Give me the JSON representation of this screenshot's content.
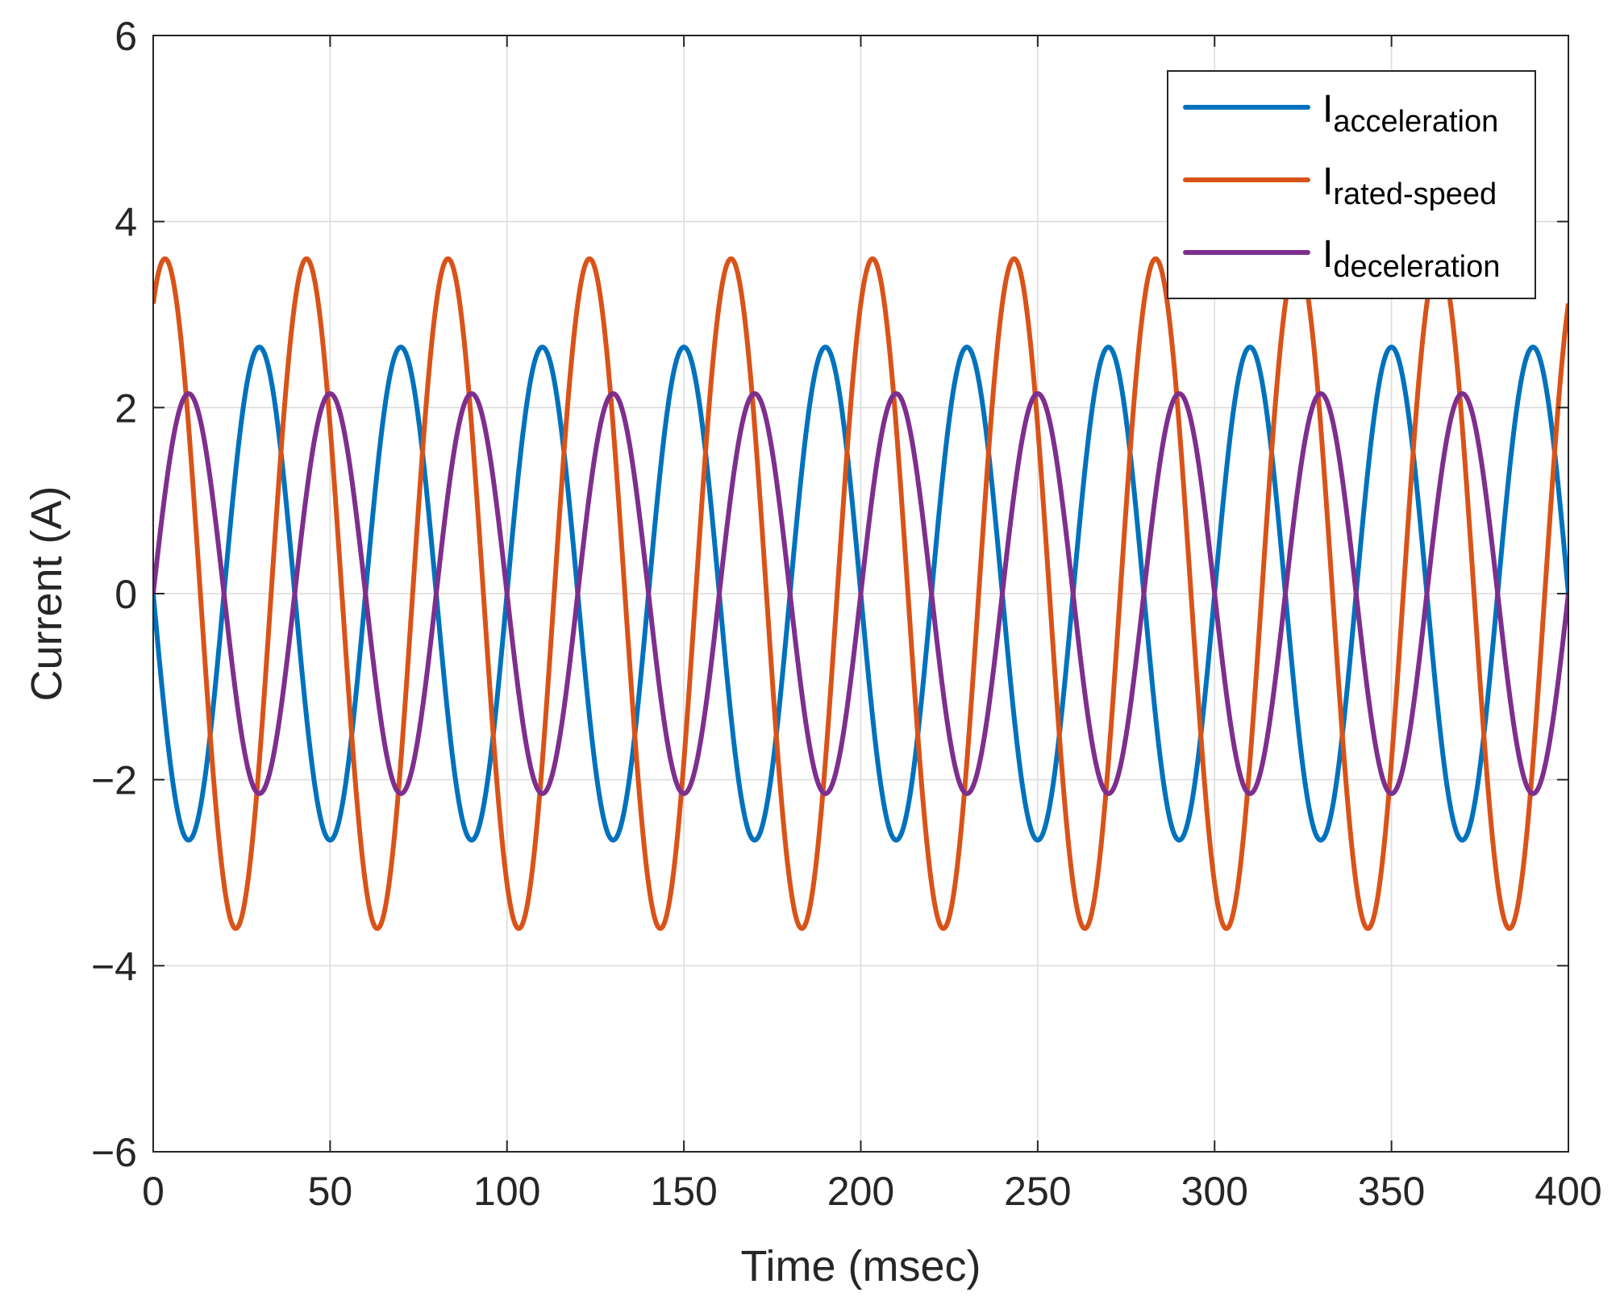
{
  "chart_data": {
    "type": "line",
    "title": "",
    "xlabel": "Time (msec)",
    "ylabel": "Current (A)",
    "xlim": [
      0,
      400
    ],
    "ylim": [
      -6,
      6
    ],
    "xticks": [
      0,
      50,
      100,
      150,
      200,
      250,
      300,
      350,
      400
    ],
    "yticks": [
      -6,
      -4,
      -2,
      0,
      2,
      4,
      6
    ],
    "xtick_labels": [
      "0",
      "50",
      "100",
      "150",
      "200",
      "250",
      "300",
      "350",
      "400"
    ],
    "ytick_labels": [
      "−6",
      "−4",
      "−2",
      "0",
      "2",
      "4",
      "6"
    ],
    "grid": true,
    "legend_position": "top-right",
    "series": [
      {
        "name_main": "I",
        "name_sub": "acceleration",
        "color": "#0072BD",
        "amplitude": 2.65,
        "period_ms": 40,
        "phase_deg": 180
      },
      {
        "name_main": "I",
        "name_sub": "rated-speed",
        "color": "#D95319",
        "amplitude": 3.6,
        "period_ms": 40,
        "phase_deg": 60
      },
      {
        "name_main": "I",
        "name_sub": "deceleration",
        "color": "#7E2F8E",
        "amplitude": 2.15,
        "period_ms": 40,
        "phase_deg": 0
      }
    ]
  }
}
